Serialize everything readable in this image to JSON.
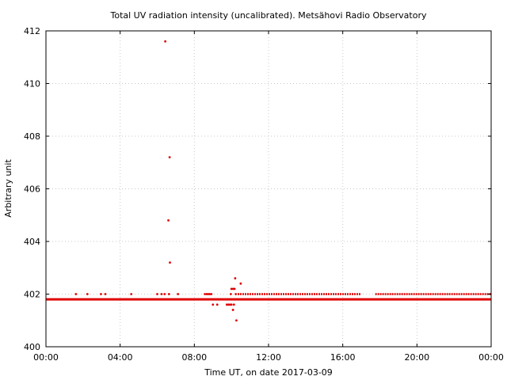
{
  "chart_data": {
    "type": "scatter",
    "title": "Total UV radiation intensity (uncalibrated). Metsähovi Radio Observatory",
    "xlabel": "Time UT, on date 2017-03-09",
    "ylabel": "Arbitrary unit",
    "xlim": [
      "2017-03-09 00:00",
      "2017-03-10 00:00"
    ],
    "ylim": [
      400,
      412
    ],
    "x_ticks": [
      "00:00",
      "04:00",
      "08:00",
      "12:00",
      "16:00",
      "20:00",
      "00:00"
    ],
    "y_ticks": [
      400,
      402,
      404,
      406,
      408,
      410,
      412
    ],
    "grid": true,
    "legend": "none",
    "marker_color": "#e00000",
    "series": [
      {
        "baseline": {
          "y": 401.8,
          "x_from": "2017-03-09 00:00",
          "x_to": "2017-03-10 00:00"
        },
        "points": [
          {
            "x": "2017-03-09 01:37",
            "y": 402.0
          },
          {
            "x": "2017-03-09 02:14",
            "y": 402.0
          },
          {
            "x": "2017-03-09 02:58",
            "y": 402.0
          },
          {
            "x": "2017-03-09 03:12",
            "y": 402.0
          },
          {
            "x": "2017-03-09 04:36",
            "y": 402.0
          },
          {
            "x": "2017-03-09 06:00",
            "y": 402.0
          },
          {
            "x": "2017-03-09 06:14",
            "y": 402.0
          },
          {
            "x": "2017-03-09 06:24",
            "y": 402.0
          },
          {
            "x": "2017-03-09 06:26",
            "y": 411.6
          },
          {
            "x": "2017-03-09 06:36",
            "y": 404.8
          },
          {
            "x": "2017-03-09 06:38",
            "y": 402.0
          },
          {
            "x": "2017-03-09 06:40",
            "y": 407.2
          },
          {
            "x": "2017-03-09 06:41",
            "y": 403.2
          },
          {
            "x": "2017-03-09 07:07",
            "y": 402.0
          },
          {
            "x": "2017-03-09 08:34",
            "y": 402.0
          },
          {
            "x": "2017-03-09 08:40",
            "y": 402.0
          },
          {
            "x": "2017-03-09 08:45",
            "y": 402.0
          },
          {
            "x": "2017-03-09 08:50",
            "y": 402.0
          },
          {
            "x": "2017-03-09 08:55",
            "y": 402.0
          },
          {
            "x": "2017-03-09 09:00",
            "y": 401.6
          },
          {
            "x": "2017-03-09 09:14",
            "y": 401.6
          },
          {
            "x": "2017-03-09 09:45",
            "y": 401.6
          },
          {
            "x": "2017-03-09 09:50",
            "y": 401.6
          },
          {
            "x": "2017-03-09 09:55",
            "y": 401.6
          },
          {
            "x": "2017-03-09 09:58",
            "y": 402.0
          },
          {
            "x": "2017-03-09 10:00",
            "y": 401.6
          },
          {
            "x": "2017-03-09 10:00",
            "y": 402.2
          },
          {
            "x": "2017-03-09 10:05",
            "y": 402.2
          },
          {
            "x": "2017-03-09 10:05",
            "y": 401.4
          },
          {
            "x": "2017-03-09 10:08",
            "y": 401.6
          },
          {
            "x": "2017-03-09 10:10",
            "y": 402.2
          },
          {
            "x": "2017-03-09 10:12",
            "y": 402.6
          },
          {
            "x": "2017-03-09 10:14",
            "y": 402.0
          },
          {
            "x": "2017-03-09 10:16",
            "y": 401.0
          },
          {
            "x": "2017-03-09 10:30",
            "y": 402.4
          }
        ],
        "dense_upper_band": {
          "y": 402.0,
          "x_from": "2017-03-09 10:20",
          "x_to": "2017-03-10 00:00",
          "gaps": [
            [
              "2017-03-09 17:00",
              "2017-03-09 17:45"
            ]
          ]
        }
      }
    ]
  }
}
